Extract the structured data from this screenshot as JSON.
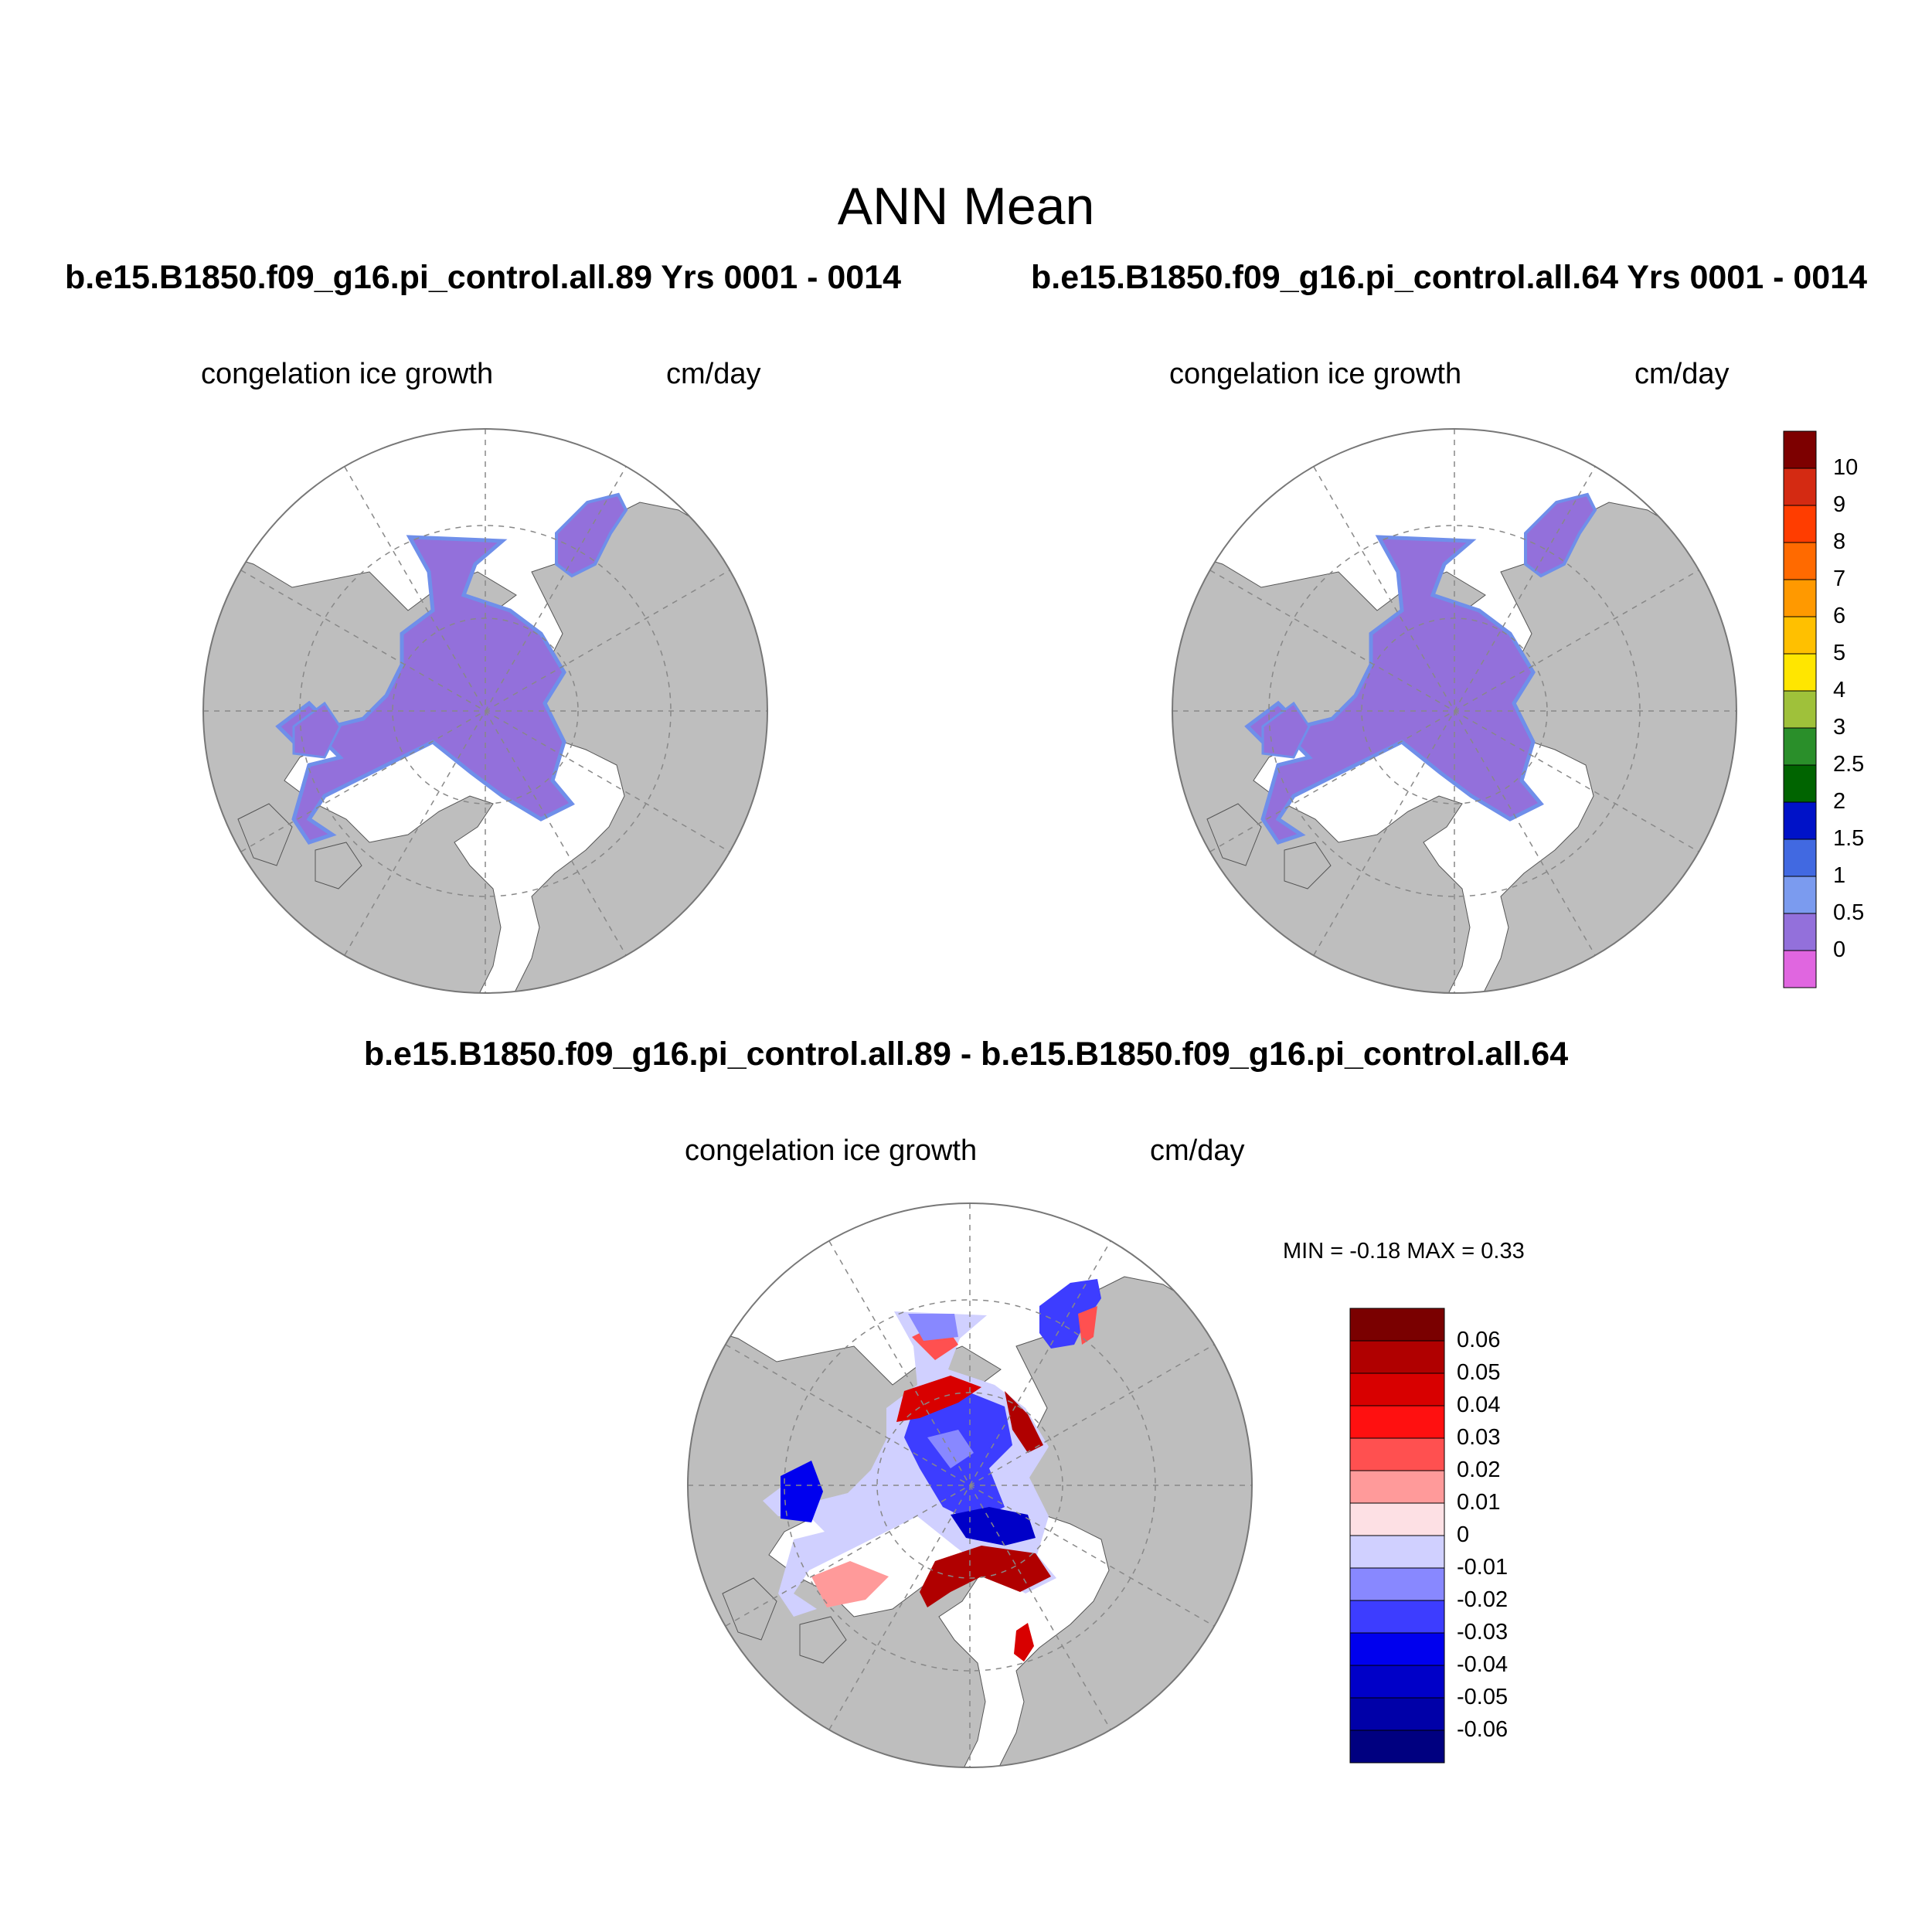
{
  "title": "ANN Mean",
  "panels": [
    {
      "id": "case1",
      "title": "b.e15.B1850.f09_g16.pi_control.all.89  Yrs 0001 - 0014",
      "left_label": "congelation ice growth",
      "right_label": "cm/day"
    },
    {
      "id": "case2",
      "title": "b.e15.B1850.f09_g16.pi_control.all.64  Yrs 0001 - 0014",
      "left_label": "congelation ice growth",
      "right_label": "cm/day"
    }
  ],
  "difference": {
    "title": "b.e15.B1850.f09_g16.pi_control.all.89 - b.e15.B1850.f09_g16.pi_control.all.64",
    "left_label": "congelation ice growth",
    "right_label": "cm/day",
    "min_label": "MIN =  -0.18 MAX =   0.33"
  },
  "colorbar_main": {
    "labels": [
      "10",
      "9",
      "8",
      "7",
      "6",
      "5",
      "4",
      "3",
      "2.5",
      "2",
      "1.5",
      "1",
      "0.5",
      "0"
    ],
    "colors": [
      "#7d0000",
      "#d42a12",
      "#ff3d00",
      "#ff6a00",
      "#ff9900",
      "#ffc000",
      "#ffe600",
      "#9fc13a",
      "#2a8f2a",
      "#006400",
      "#0012c8",
      "#4169e1",
      "#7b9bef",
      "#9370db",
      "#e066e0"
    ]
  },
  "colorbar_diff": {
    "labels": [
      "0.06",
      "0.05",
      "0.04",
      "0.03",
      "0.02",
      "0.01",
      "0",
      "-0.01",
      "-0.02",
      "-0.03",
      "-0.04",
      "-0.05",
      "-0.06"
    ],
    "colors": [
      "#7a0000",
      "#b00000",
      "#d80000",
      "#ff1010",
      "#ff5050",
      "#ff9a9a",
      "#fde0e4",
      "#d0d0ff",
      "#8888ff",
      "#3d3dff",
      "#0000ee",
      "#0000c8",
      "#0000a8",
      "#000080"
    ]
  },
  "colors": {
    "land": "#bebebe",
    "ocean": "#ffffff",
    "ice_mean": "#9370db",
    "ice_edge": "#6f8fea"
  }
}
